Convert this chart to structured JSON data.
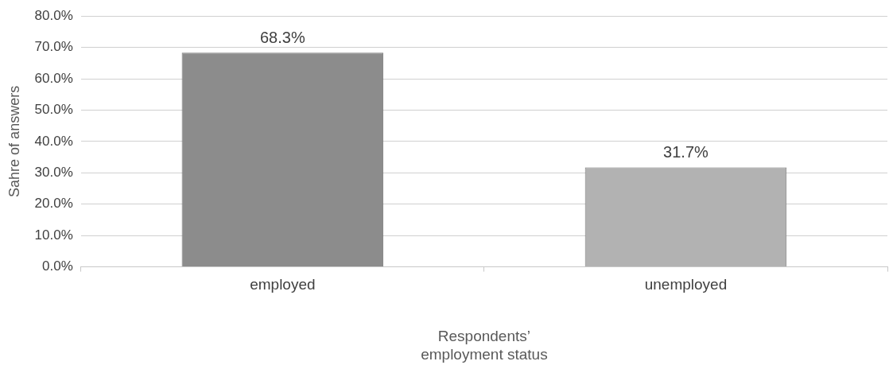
{
  "chart_data": {
    "type": "bar",
    "xlabel": "Respondents’\nemployment status",
    "ylabel": "Sahre of answers",
    "categories": [
      "employed",
      "unemployed"
    ],
    "values": [
      68.3,
      31.7
    ],
    "colors": [
      "#8c8c8c",
      "#b2b2b2"
    ],
    "ylim": [
      0,
      80
    ],
    "yticks": [
      {
        "value": 0,
        "label": "0.0%"
      },
      {
        "value": 10,
        "label": "10.0%"
      },
      {
        "value": 20,
        "label": "20.0%"
      },
      {
        "value": 30,
        "label": "30.0%"
      },
      {
        "value": 40,
        "label": "40.0%"
      },
      {
        "value": 50,
        "label": "50.0%"
      },
      {
        "value": 60,
        "label": "60.0%"
      },
      {
        "value": 70,
        "label": "70.0%"
      },
      {
        "value": 80,
        "label": "80.0%"
      }
    ],
    "value_labels": [
      "68.3%",
      "31.7%"
    ],
    "grid": "y",
    "legend": false
  }
}
